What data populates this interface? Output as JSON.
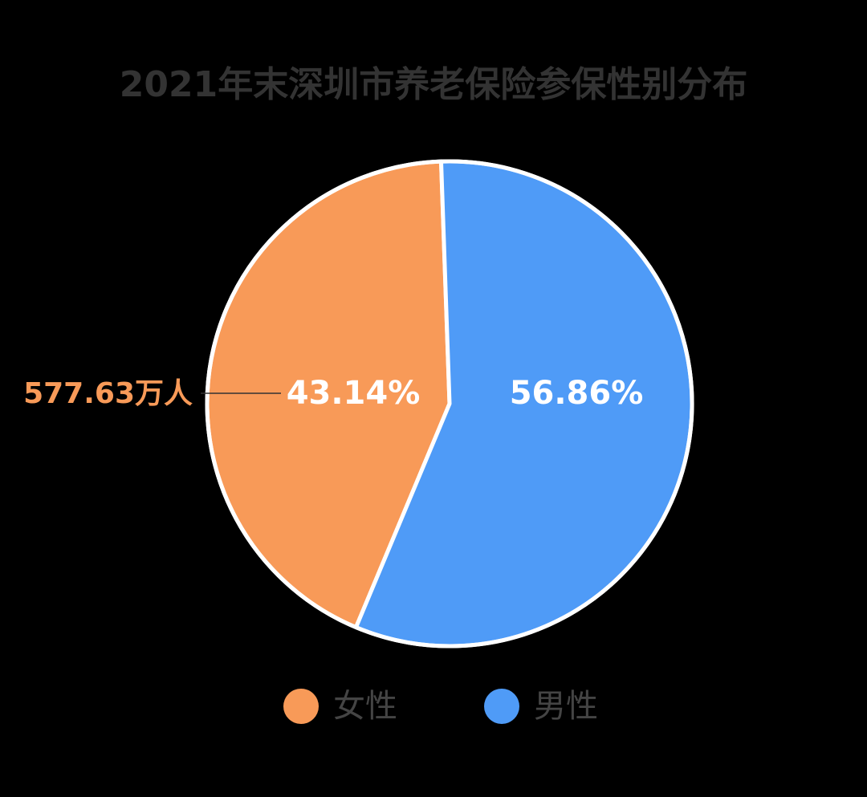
{
  "chart_data": {
    "type": "pie",
    "title": "2021年末深圳市养老保险参保性别分布",
    "categories": [
      "女性",
      "男性"
    ],
    "values": [
      43.14,
      56.86
    ],
    "value_labels": [
      "43.14%",
      "56.86%"
    ],
    "colors": [
      "#f89a58",
      "#4f9bf7"
    ],
    "annotation": "577.63万人"
  }
}
